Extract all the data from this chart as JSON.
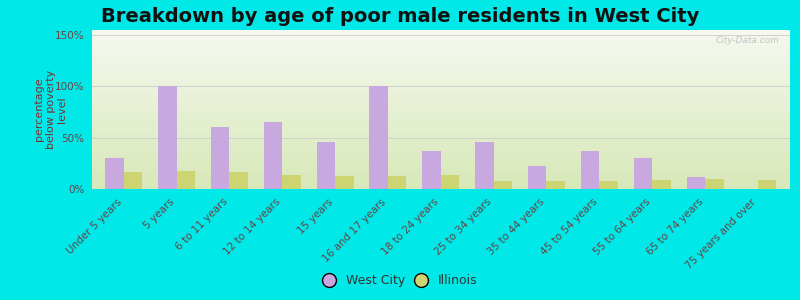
{
  "title": "Breakdown by age of poor male residents in West City",
  "ylabel": "percentage\nbelow poverty\nlevel",
  "categories": [
    "Under 5 years",
    "5 years",
    "6 to 11 years",
    "12 to 14 years",
    "15 years",
    "16 and 17 years",
    "18 to 24 years",
    "25 to 34 years",
    "35 to 44 years",
    "45 to 54 years",
    "55 to 64 years",
    "65 to 74 years",
    "75 years and over"
  ],
  "west_city": [
    30,
    100,
    60,
    65,
    46,
    100,
    37,
    46,
    22,
    37,
    30,
    12,
    0
  ],
  "illinois": [
    17,
    18,
    17,
    14,
    13,
    13,
    14,
    8,
    8,
    8,
    9,
    10,
    9
  ],
  "bar_color_west": "#c9a8df",
  "bar_color_illinois": "#cdd472",
  "outer_bg": "#00e8e8",
  "plot_bg_top": "#f5f8ee",
  "plot_bg_bottom": "#d8e8b8",
  "ylim": [
    0,
    155
  ],
  "yticks": [
    0,
    50,
    100,
    150
  ],
  "ytick_labels": [
    "0%",
    "50%",
    "100%",
    "150%"
  ],
  "title_fontsize": 14,
  "ylabel_fontsize": 8,
  "tick_fontsize": 7.5,
  "legend_fontsize": 9,
  "bar_width": 0.35,
  "watermark": "City-Data.com",
  "ylabel_color": "#7a3030",
  "tick_color": "#664444",
  "title_color": "#111111"
}
